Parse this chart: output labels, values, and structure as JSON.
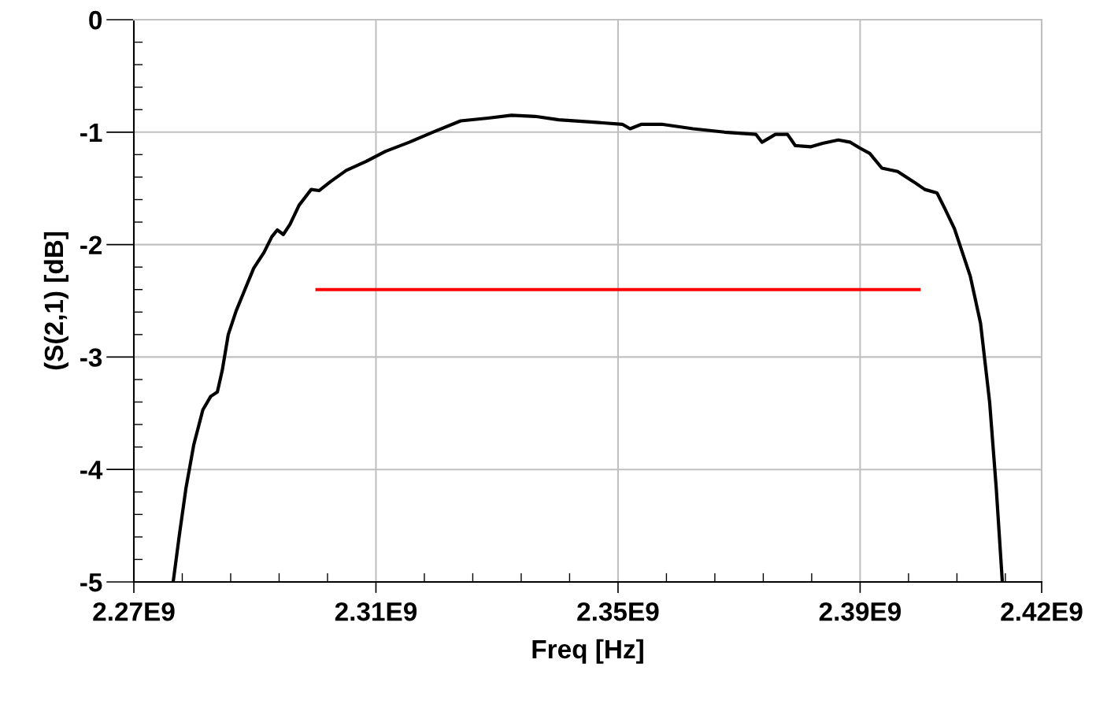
{
  "chart_data": {
    "type": "line",
    "xlabel": "Freq [Hz]",
    "ylabel": "(S(2,1) [dB]",
    "xlim": [
      2270000000,
      2420000000
    ],
    "ylim": [
      -5,
      0
    ],
    "xticks": [
      {
        "value": 2270000000,
        "label": "2.27E9"
      },
      {
        "value": 2278000000,
        "label": null
      },
      {
        "value": 2286000000,
        "label": null
      },
      {
        "value": 2294000000,
        "label": null
      },
      {
        "value": 2302000000,
        "label": null
      },
      {
        "value": 2310000000,
        "label": "2.31E9"
      },
      {
        "value": 2318000000,
        "label": null
      },
      {
        "value": 2326000000,
        "label": null
      },
      {
        "value": 2334000000,
        "label": null
      },
      {
        "value": 2342000000,
        "label": null
      },
      {
        "value": 2350000000,
        "label": "2.35E9"
      },
      {
        "value": 2358000000,
        "label": null
      },
      {
        "value": 2366000000,
        "label": null
      },
      {
        "value": 2374000000,
        "label": null
      },
      {
        "value": 2382000000,
        "label": null
      },
      {
        "value": 2390000000,
        "label": "2.39E9"
      },
      {
        "value": 2398000000,
        "label": null
      },
      {
        "value": 2406000000,
        "label": null
      },
      {
        "value": 2414000000,
        "label": null
      },
      {
        "value": 2420000000,
        "label": "2.42E9"
      }
    ],
    "yticks": [
      0,
      {
        "value": -0.2,
        "label": null
      },
      {
        "value": -0.4,
        "label": null
      },
      {
        "value": -0.6,
        "label": null
      },
      {
        "value": -0.8,
        "label": null
      },
      {
        "value": -1,
        "label": "-1"
      },
      {
        "value": -1.2,
        "label": null
      },
      {
        "value": -1.4,
        "label": null
      },
      {
        "value": -1.6,
        "label": null
      },
      {
        "value": -1.8,
        "label": null
      },
      {
        "value": -2,
        "label": "-2"
      },
      {
        "value": -2.2,
        "label": null
      },
      {
        "value": -2.4,
        "label": null
      },
      {
        "value": -2.6,
        "label": null
      },
      {
        "value": -2.8,
        "label": null
      },
      {
        "value": -3,
        "label": "-3"
      },
      {
        "value": -3.2,
        "label": null
      },
      {
        "value": -3.4,
        "label": null
      },
      {
        "value": -3.6,
        "label": null
      },
      {
        "value": -3.8,
        "label": null
      },
      {
        "value": -4,
        "label": "-4"
      },
      {
        "value": -4.2,
        "label": null
      },
      {
        "value": -4.4,
        "label": null
      },
      {
        "value": -4.6,
        "label": null
      },
      {
        "value": -4.8,
        "label": null
      },
      {
        "value": -5,
        "label": "-5"
      }
    ],
    "grid": true,
    "line_style": "solid",
    "series": [
      {
        "color": "#000000",
        "x": [
          2276500000,
          2277500000,
          2278600000,
          2279900000,
          2281400000,
          2282700000,
          2283800000,
          2284600000,
          2285600000,
          2286900000,
          2288200000,
          2289800000,
          2291500000,
          2292800000,
          2293700000,
          2294700000,
          2295800000,
          2297300000,
          2299300000,
          2300600000,
          2302500000,
          2305100000,
          2308400000,
          2311600000,
          2315500000,
          2319400000,
          2324000000,
          2328500000,
          2332400000,
          2336300000,
          2340200000,
          2345500000,
          2350700000,
          2352000000,
          2353900000,
          2357200000,
          2362400000,
          2367600000,
          2372800000,
          2373800000,
          2376000000,
          2378000000,
          2379300000,
          2381900000,
          2383800000,
          2386400000,
          2388400000,
          2389900000,
          2391600000,
          2393600000,
          2396200000,
          2398800000,
          2400700000,
          2402700000,
          2404000000,
          2405600000,
          2406900000,
          2408200000,
          2409900000,
          2411400000,
          2412500000,
          2413500000
        ],
        "values": [
          -5,
          -4.59,
          -4.17,
          -3.78,
          -3.47,
          -3.35,
          -3.31,
          -3.12,
          -2.8,
          -2.59,
          -2.42,
          -2.21,
          -2.07,
          -1.93,
          -1.87,
          -1.91,
          -1.82,
          -1.65,
          -1.51,
          -1.52,
          -1.44,
          -1.34,
          -1.26,
          -1.17,
          -1.09,
          -1.0,
          -0.9,
          -0.875,
          -0.85,
          -0.86,
          -0.89,
          -0.91,
          -0.93,
          -0.97,
          -0.93,
          -0.93,
          -0.97,
          -1.0,
          -1.02,
          -1.09,
          -1.02,
          -1.02,
          -1.12,
          -1.13,
          -1.1,
          -1.07,
          -1.09,
          -1.14,
          -1.19,
          -1.32,
          -1.35,
          -1.44,
          -1.51,
          -1.54,
          -1.68,
          -1.86,
          -2.07,
          -2.28,
          -2.7,
          -3.4,
          -4.17,
          -5
        ]
      },
      {
        "color": "#ff0000",
        "x": [
          2300000000,
          2400000000
        ],
        "values": [
          -2.4,
          -2.4
        ]
      }
    ]
  }
}
